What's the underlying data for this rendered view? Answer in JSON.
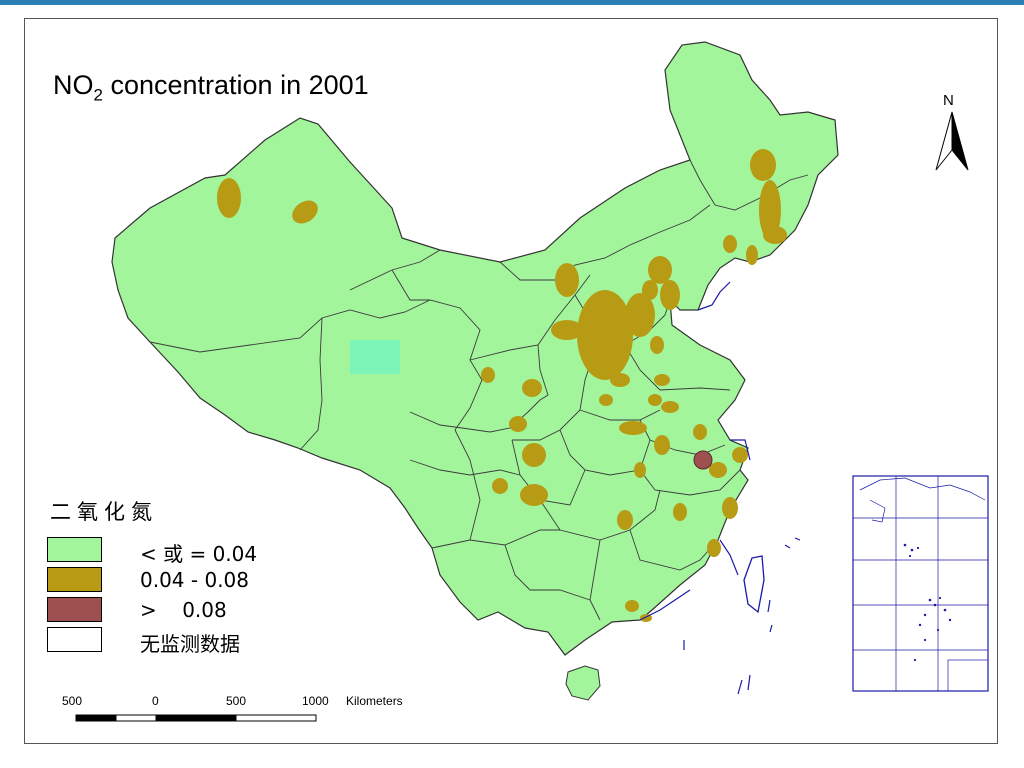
{
  "map": {
    "title_prefix": "NO",
    "title_subscript": "2",
    "title_suffix": " concentration in 2001",
    "north_label": "N",
    "legend": {
      "title": "二氧化氮",
      "items": [
        {
          "label": "< 或 = 0.04",
          "color": "#a3f59c"
        },
        {
          "label": "0.04 - 0.08",
          "color": "#b89b14"
        },
        {
          "label": ">    0.08",
          "color": "#9e4f4f"
        },
        {
          "label": "无监测数据",
          "color": "#ffffff"
        }
      ]
    },
    "scale_bar": {
      "ticks": [
        "500",
        "0",
        "500",
        "1000"
      ],
      "unit": "Kilometers"
    },
    "colors": {
      "base": "#a3f59c",
      "mid": "#b89b14",
      "high": "#9e4f4f",
      "nodata_region": "#7ef5b8",
      "boundary": "#444444",
      "coast": "#1a1aa8"
    }
  }
}
